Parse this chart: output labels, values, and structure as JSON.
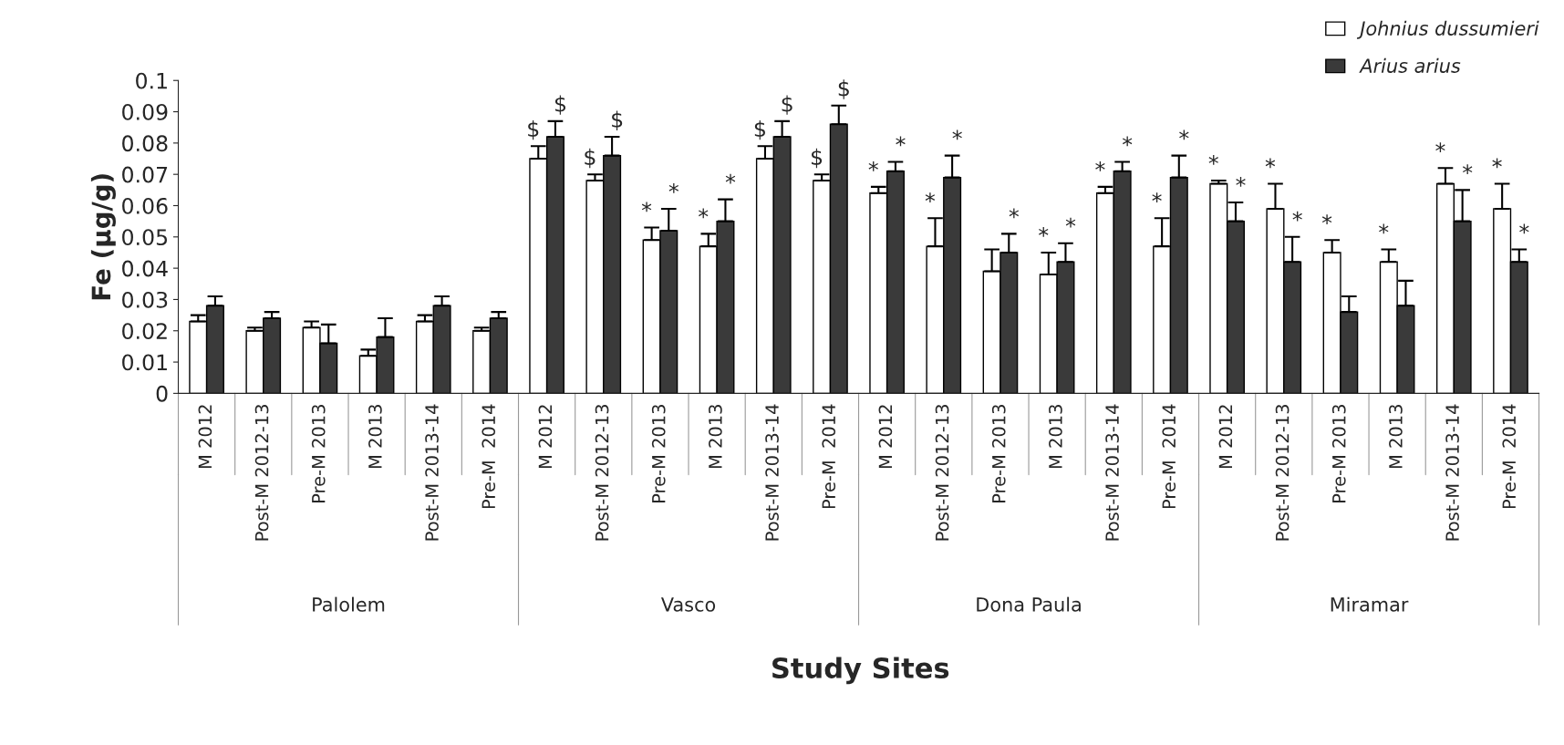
{
  "chart_data": {
    "type": "bar",
    "ylabel": "Fe (µg/g)",
    "xlabel": "Study Sites",
    "categories": [
      "M 2012",
      "Post-M 2012-13",
      "Pre-M 2013",
      "M 2013",
      "Post-M 2013-14",
      "Pre-M  2014",
      "M 2012",
      "Post-M 2012-13",
      "Pre-M 2013",
      "M 2013",
      "Post-M 2013-14",
      "Pre-M  2014",
      "M 2012",
      "Post-M 2012-13",
      "Pre-M 2013",
      "M 2013",
      "Post-M 2013-14",
      "Pre-M  2014",
      "M 2012",
      "Post-M 2012-13",
      "Pre-M 2013",
      "M 2013",
      "Post-M 2013-14",
      "Pre-M  2014"
    ],
    "series": [
      {
        "name": "Johnius dussumieri",
        "color": "#ffffff",
        "values": [
          0.023,
          0.02,
          0.021,
          0.012,
          0.023,
          0.02,
          0.075,
          0.068,
          0.049,
          0.047,
          0.075,
          0.068,
          0.064,
          0.047,
          0.039,
          0.038,
          0.064,
          0.047,
          0.067,
          0.059,
          0.045,
          0.042,
          0.067,
          0.059
        ],
        "errors": [
          0.002,
          0.001,
          0.002,
          0.002,
          0.002,
          0.001,
          0.004,
          0.002,
          0.004,
          0.004,
          0.004,
          0.002,
          0.002,
          0.009,
          0.007,
          0.007,
          0.002,
          0.009,
          0.001,
          0.008,
          0.004,
          0.004,
          0.005,
          0.008
        ],
        "value_labels": [
          null,
          null,
          null,
          null,
          null,
          null,
          "$",
          "$",
          "*",
          "*",
          "$",
          "$",
          "*",
          "*",
          null,
          "*",
          "*",
          "*",
          "*",
          "*",
          "*",
          "*",
          "*",
          "*"
        ]
      },
      {
        "name": "Arius arius",
        "color": "#3a3a3a",
        "values": [
          0.028,
          0.024,
          0.016,
          0.018,
          0.028,
          0.024,
          0.082,
          0.076,
          0.052,
          0.055,
          0.082,
          0.086,
          0.071,
          0.069,
          0.045,
          0.042,
          0.071,
          0.069,
          0.055,
          0.042,
          0.026,
          0.028,
          0.055,
          0.042
        ],
        "errors": [
          0.003,
          0.002,
          0.006,
          0.006,
          0.003,
          0.002,
          0.005,
          0.006,
          0.007,
          0.007,
          0.005,
          0.006,
          0.003,
          0.007,
          0.006,
          0.006,
          0.003,
          0.007,
          0.006,
          0.008,
          0.005,
          0.008,
          0.01,
          0.004
        ],
        "value_labels": [
          null,
          null,
          null,
          null,
          null,
          null,
          "$",
          "$",
          "*",
          "*",
          "$",
          "$",
          "*",
          "*",
          "*",
          "*",
          "*",
          "*",
          "*",
          "*",
          null,
          null,
          "*",
          "*"
        ]
      }
    ],
    "annotations": [
      "Palolem",
      "Vasco",
      "Dona Paula",
      "Miramar"
    ],
    "ylim": [
      0,
      0.1
    ],
    "yticks": [
      0,
      0.01,
      0.02,
      0.03,
      0.04,
      0.05,
      0.06,
      0.07,
      0.08,
      0.09,
      0.1
    ],
    "grid": false,
    "legend": "top right"
  }
}
